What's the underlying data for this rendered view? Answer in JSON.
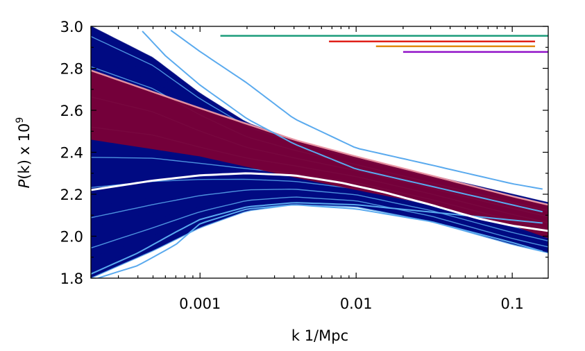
{
  "chart_data": {
    "type": "line",
    "title": "",
    "xlabel": "k 1/Mpc",
    "ylabel_prefix": "P",
    "ylabel_suffix": "(k) x 10",
    "ylabel_exponent": "9",
    "xscale": "log",
    "xlim": [
      0.0002,
      0.17
    ],
    "ylim": [
      1.8,
      3.0
    ],
    "grid": false,
    "x_ticks": [
      {
        "value": 0.001,
        "label": "0.001"
      },
      {
        "value": 0.01,
        "label": "0.01"
      },
      {
        "value": 0.1,
        "label": "0.1"
      }
    ],
    "y_ticks": [
      {
        "value": 1.8,
        "label": "1.8"
      },
      {
        "value": 2.0,
        "label": "2.0"
      },
      {
        "value": 2.2,
        "label": "2.2"
      },
      {
        "value": 2.4,
        "label": "2.4"
      },
      {
        "value": 2.6,
        "label": "2.6"
      },
      {
        "value": 2.8,
        "label": "2.8"
      },
      {
        "value": 3.0,
        "label": "3.0"
      }
    ],
    "colors": {
      "light_blue": "#5aaaee",
      "dark_blue": "#000a82",
      "dark_red": "#7a0036",
      "pink": "#f4a0a8",
      "white": "#ffffff",
      "green": "#1a9c7a",
      "red": "#e0201a",
      "orange": "#e08a10",
      "purple": "#9010c8"
    },
    "white_curve": {
      "x": [
        0.0002,
        0.0005,
        0.001,
        0.002,
        0.004,
        0.008,
        0.015,
        0.03,
        0.06,
        0.1,
        0.17
      ],
      "y": [
        2.22,
        2.265,
        2.29,
        2.3,
        2.29,
        2.255,
        2.21,
        2.15,
        2.085,
        2.05,
        2.025
      ]
    },
    "light_blue_outliers": [
      {
        "x": [
          0.0006,
          0.001,
          0.002,
          0.004,
          0.01,
          0.03,
          0.1,
          0.17
        ],
        "y": [
          3.0,
          2.88,
          2.73,
          2.56,
          2.42,
          2.34,
          2.25,
          2.22
        ]
      },
      {
        "x": [
          0.0004,
          0.0006,
          0.001,
          0.002,
          0.004,
          0.01,
          0.17
        ],
        "y": [
          3.0,
          2.86,
          2.72,
          2.56,
          2.44,
          2.32,
          2.11
        ]
      },
      {
        "x": [
          0.0002,
          0.0004,
          0.0007,
          0.001,
          0.002,
          0.004,
          0.01,
          0.03,
          0.1,
          0.17
        ],
        "y": [
          1.79,
          1.86,
          1.96,
          2.06,
          2.13,
          2.15,
          2.13,
          2.07,
          1.97,
          1.92
        ]
      },
      {
        "x": [
          0.0002,
          0.0004,
          0.0007,
          0.001,
          0.002,
          0.004,
          0.01,
          0.17
        ],
        "y": [
          1.82,
          1.92,
          2.02,
          2.08,
          2.14,
          2.16,
          2.15,
          2.06
        ]
      }
    ],
    "red_band": {
      "x": [
        0.0002,
        0.001,
        0.004,
        0.01,
        0.03,
        0.1,
        0.17
      ],
      "upper": [
        2.79,
        2.61,
        2.46,
        2.38,
        2.29,
        2.19,
        2.15
      ],
      "lower": [
        2.46,
        2.38,
        2.28,
        2.22,
        2.15,
        2.05,
        1.99
      ]
    },
    "blue_band": {
      "x": [
        0.0002,
        0.0005,
        0.001,
        0.002,
        0.004,
        0.01,
        0.03,
        0.1,
        0.17
      ],
      "upper": [
        3.0,
        2.85,
        2.68,
        2.54,
        2.46,
        2.38,
        2.29,
        2.2,
        2.16
      ],
      "lower": [
        1.8,
        1.93,
        2.04,
        2.12,
        2.15,
        2.14,
        2.07,
        1.96,
        1.92
      ]
    },
    "bin_ranges": [
      {
        "color": "green",
        "x": [
          0.00135,
          0.17
        ],
        "y": 2.955
      },
      {
        "color": "red",
        "x": [
          0.0067,
          0.14
        ],
        "y": 2.928
      },
      {
        "color": "orange",
        "x": [
          0.0134,
          0.14
        ],
        "y": 2.905
      },
      {
        "color": "purple",
        "x": [
          0.02,
          0.17
        ],
        "y": 2.878
      }
    ]
  }
}
